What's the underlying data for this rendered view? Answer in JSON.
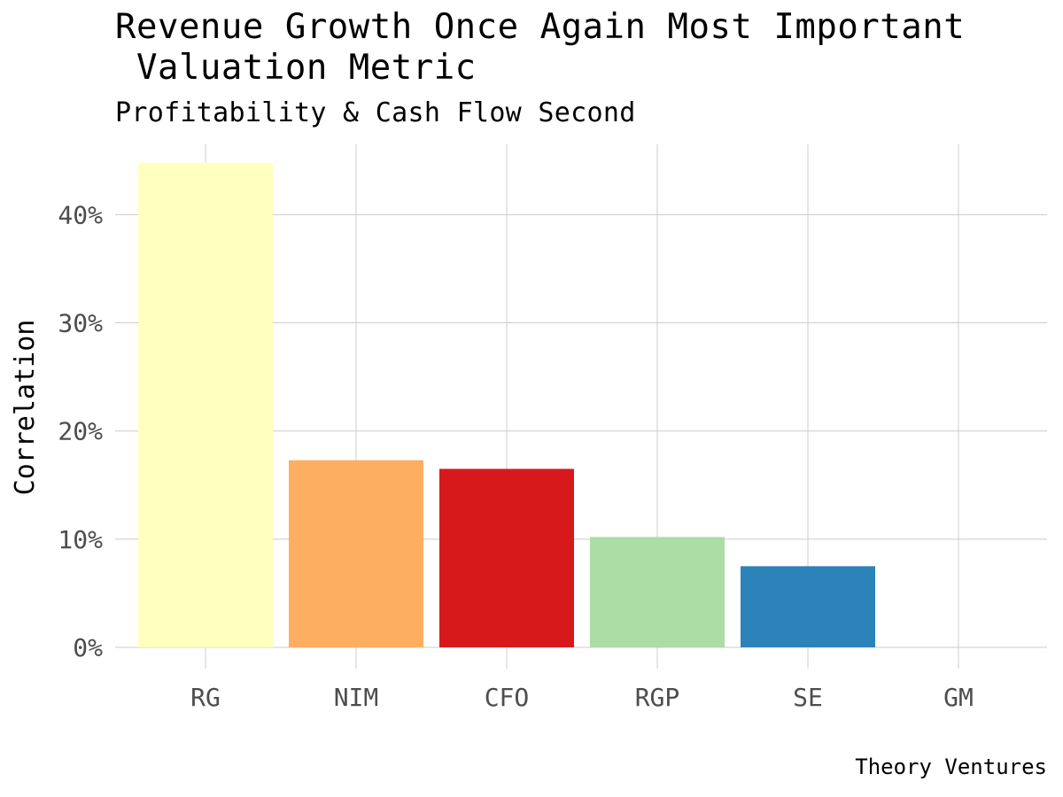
{
  "chart_data": {
    "type": "bar",
    "title": "Revenue Growth Once Again Most Important\n Valuation Metric",
    "subtitle": "Profitability & Cash Flow Second",
    "caption": "Theory Ventures",
    "xlabel": "",
    "ylabel": "Correlation",
    "categories": [
      "RG",
      "NIM",
      "CFO",
      "RGP",
      "SE",
      "GM"
    ],
    "values": [
      0.448,
      0.173,
      0.165,
      0.102,
      0.075,
      0.0
    ],
    "colors": [
      "#FFFFBF",
      "#FDAE61",
      "#D7191C",
      "#ABDDA4",
      "#2B83BA",
      "#FFFFFF"
    ],
    "ylim": [
      0,
      0.465
    ],
    "yticks": [
      0,
      0.1,
      0.2,
      0.3,
      0.4
    ],
    "ytick_labels": [
      "0%",
      "10%",
      "20%",
      "30%",
      "40%"
    ],
    "grid": true,
    "legend": "none"
  }
}
